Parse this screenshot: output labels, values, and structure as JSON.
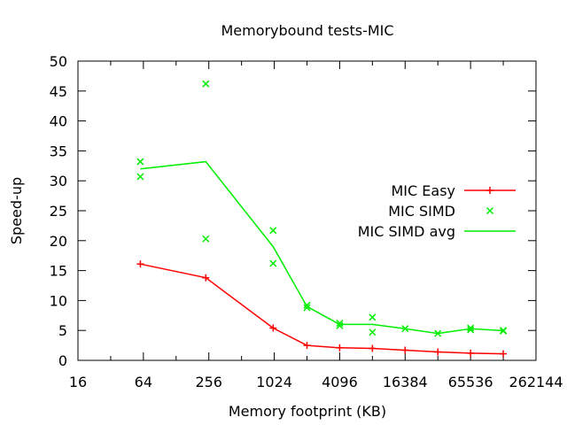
{
  "chart_data": {
    "type": "line",
    "title": "Memorybound tests-MIC",
    "xlabel": "Memory footprint (KB)",
    "ylabel": "Speed-up",
    "x_scale": "log2",
    "xlim": [
      16,
      262144
    ],
    "ylim": [
      0,
      50
    ],
    "x_ticks": [
      16,
      64,
      256,
      1024,
      4096,
      16384,
      65536,
      262144
    ],
    "x_tick_labels": [
      "16",
      "64",
      "256",
      "1024",
      "4096",
      "16384",
      "65536",
      "262144"
    ],
    "y_ticks": [
      0,
      5,
      10,
      15,
      20,
      25,
      30,
      35,
      40,
      45,
      50
    ],
    "y_tick_labels": [
      "0",
      "5",
      "10",
      "15",
      "20",
      "25",
      "30",
      "35",
      "40",
      "45",
      "50"
    ],
    "legend_position": "right",
    "series": [
      {
        "name": "MIC Easy",
        "style": "line+plus",
        "color": "#ff0000",
        "x": [
          60,
          240,
          1000,
          2048,
          4096,
          8192,
          16384,
          32768,
          65536,
          131072
        ],
        "y": [
          16.1,
          13.8,
          5.4,
          2.5,
          2.1,
          2.0,
          1.7,
          1.4,
          1.2,
          1.1
        ]
      },
      {
        "name": "MIC SIMD",
        "style": "cross",
        "color": "#00ee00",
        "x": [
          60,
          60,
          240,
          240,
          1000,
          1000,
          2048,
          2048,
          4096,
          4096,
          8192,
          8192,
          16384,
          32768,
          65536,
          65536,
          131072,
          131072
        ],
        "y": [
          33.2,
          30.7,
          46.2,
          20.3,
          21.7,
          16.2,
          9.2,
          8.8,
          6.2,
          5.8,
          7.2,
          4.7,
          5.3,
          4.5,
          5.4,
          5.1,
          5.0,
          4.9
        ]
      },
      {
        "name": "MIC SIMD avg",
        "style": "line",
        "color": "#00ee00",
        "x": [
          60,
          240,
          1000,
          2048,
          4096,
          8192,
          16384,
          32768,
          65536,
          131072
        ],
        "y": [
          32.0,
          33.2,
          19.0,
          9.0,
          6.0,
          6.0,
          5.3,
          4.5,
          5.3,
          4.95
        ]
      }
    ]
  }
}
